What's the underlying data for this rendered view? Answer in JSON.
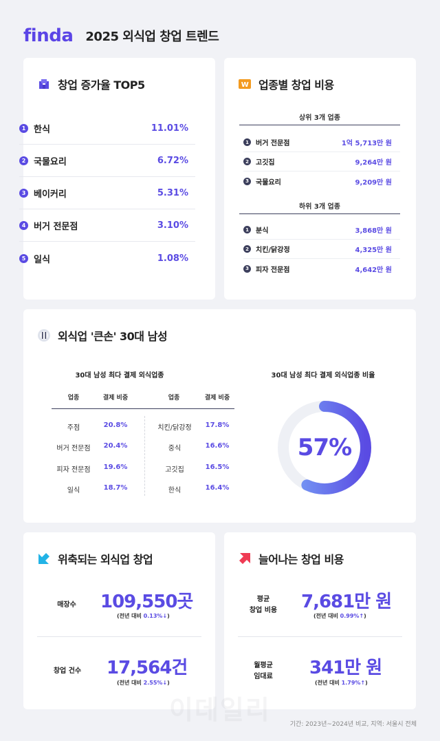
{
  "header": {
    "logo": "finda",
    "title": "2025 외식업 창업 트렌드"
  },
  "top5": {
    "title": "창업 증가율 TOP5",
    "icon": "building-icon",
    "items": [
      {
        "rank": "1",
        "label": "한식",
        "value": "11.01%"
      },
      {
        "rank": "2",
        "label": "국물요리",
        "value": "6.72%"
      },
      {
        "rank": "3",
        "label": "베이커리",
        "value": "5.31%"
      },
      {
        "rank": "4",
        "label": "버거 전문점",
        "value": "3.10%"
      },
      {
        "rank": "5",
        "label": "일식",
        "value": "1.08%"
      }
    ]
  },
  "cost": {
    "title": "업종별 창업 비용",
    "icon": "won-icon",
    "top_head": "상위 3개 업종",
    "top": [
      {
        "rank": "1",
        "label": "버거 전문점",
        "value": "1억 5,713만 원"
      },
      {
        "rank": "2",
        "label": "고깃집",
        "value": "9,264만 원"
      },
      {
        "rank": "3",
        "label": "국물요리",
        "value": "9,209만 원"
      }
    ],
    "bottom_head": "하위 3개 업종",
    "bottom": [
      {
        "rank": "1",
        "label": "분식",
        "value": "3,868만 원"
      },
      {
        "rank": "2",
        "label": "치킨/닭강정",
        "value": "4,325만 원"
      },
      {
        "rank": "3",
        "label": "피자 전문점",
        "value": "4,642만 원"
      }
    ]
  },
  "men30": {
    "title": "외식업 '큰손' 30대 남성",
    "icon": "dining-icon",
    "table_title": "30대 남성 최다 결제 외식업종",
    "headers": [
      "업종",
      "결제 비중",
      "업종",
      "결제 비중"
    ],
    "left": [
      {
        "label": "주점",
        "value": "20.8%"
      },
      {
        "label": "버거 전문점",
        "value": "20.4%"
      },
      {
        "label": "피자 전문점",
        "value": "19.6%"
      },
      {
        "label": "일식",
        "value": "18.7%"
      }
    ],
    "right": [
      {
        "label": "치킨/닭강정",
        "value": "17.8%"
      },
      {
        "label": "중식",
        "value": "16.6%"
      },
      {
        "label": "고깃집",
        "value": "16.5%"
      },
      {
        "label": "한식",
        "value": "16.4%"
      }
    ],
    "donut_title": "30대 남성 최다 결제 외식업종 비율",
    "donut_label": "57%",
    "donut_fraction": 0.57
  },
  "shrink": {
    "title": "위축되는 외식업 창업",
    "icon": "arrow-down-left-icon",
    "rows": [
      {
        "label": "매장수",
        "value": "109,550곳",
        "note_prefix": "(전년 대비 ",
        "note_change": "0.13%↓",
        "note_suffix": ")"
      },
      {
        "label": "창업 건수",
        "value": "17,564건",
        "note_prefix": "(전년 대비 ",
        "note_change": "2.55%↓",
        "note_suffix": ")"
      }
    ]
  },
  "rise": {
    "title": "늘어나는 창업 비용",
    "icon": "arrow-up-right-icon",
    "rows": [
      {
        "label1": "평균",
        "label2": "창업 비용",
        "value": "7,681만 원",
        "note_prefix": "(전년 대비 ",
        "note_change": "0.99%↑",
        "note_suffix": ")"
      },
      {
        "label1": "월평균",
        "label2": "임대료",
        "value": "341만 원",
        "note_prefix": "(전년 대비 ",
        "note_change": "1.79%↑",
        "note_suffix": ")"
      }
    ]
  },
  "footnote": "기간: 2023년~2024년 비교, 지역: 서울시 전체",
  "watermark": "이데일리",
  "colors": {
    "accent": "#5a4be3",
    "background": "#f1f2f6",
    "card": "#ffffff"
  }
}
